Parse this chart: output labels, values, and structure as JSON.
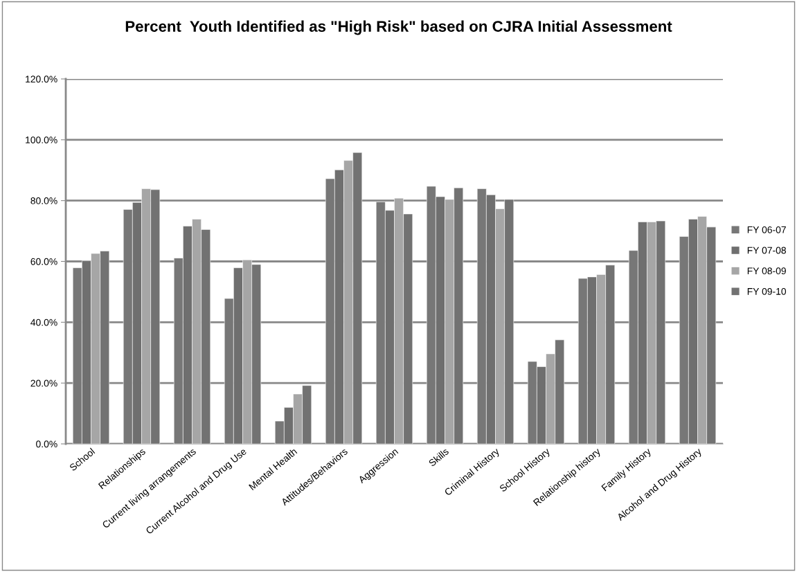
{
  "chart_data": {
    "type": "bar",
    "title": "Percent  Youth Identified as \"High Risk\" based on CJRA Initial Assessment",
    "categories": [
      "School",
      "Relationships",
      "Current living arrangements",
      "Current Alcohol and Drug Use",
      "Mental Health",
      "Attitudes/Behaviors",
      "Aggression",
      "Skills",
      "Criminal History",
      "School History",
      "Relationship history",
      "Family History",
      "Alcohol and Drug History"
    ],
    "series": [
      {
        "name": "FY 06-07",
        "color": "#777777",
        "values": [
          57.9,
          77.1,
          61.1,
          47.8,
          7.5,
          87.2,
          79.6,
          84.7,
          83.9,
          27.1,
          54.4,
          63.6,
          68.2
        ]
      },
      {
        "name": "FY 07-08",
        "color": "#6f6f6f",
        "values": [
          60.2,
          79.4,
          71.6,
          57.9,
          12.0,
          90.1,
          76.8,
          81.3,
          81.9,
          25.4,
          54.9,
          73.0,
          73.9
        ]
      },
      {
        "name": "FY 08-09",
        "color": "#a6a6a6",
        "values": [
          62.6,
          83.9,
          73.9,
          60.5,
          16.4,
          93.2,
          80.8,
          80.4,
          77.3,
          29.6,
          55.7,
          73.0,
          74.8
        ]
      },
      {
        "name": "FY 09-10",
        "color": "#727272",
        "values": [
          63.4,
          83.6,
          70.5,
          59.0,
          19.2,
          95.8,
          75.6,
          84.2,
          80.4,
          34.2,
          58.8,
          73.3,
          71.3
        ]
      }
    ],
    "ylim": [
      0,
      120
    ],
    "yticks": [
      {
        "value": 0,
        "label": "0.0%"
      },
      {
        "value": 20,
        "label": "20.0%"
      },
      {
        "value": 40,
        "label": "40.0%"
      },
      {
        "value": 60,
        "label": "60.0%"
      },
      {
        "value": 80,
        "label": "80.0%"
      },
      {
        "value": 100,
        "label": "100.0%"
      },
      {
        "value": 120,
        "label": "120.0%"
      }
    ],
    "grid": "y",
    "legend": "right"
  }
}
